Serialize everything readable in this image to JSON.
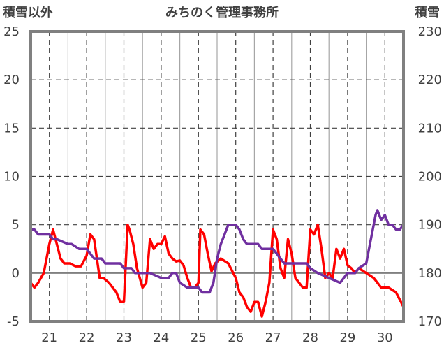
{
  "header": {
    "left_axis_label": "積雪以外",
    "right_axis_label": "積雪",
    "title": "みちのく管理事務所"
  },
  "chart_data": {
    "type": "line",
    "title": "みちのく管理事務所",
    "x_categories": [
      "21",
      "22",
      "23",
      "24",
      "25",
      "26",
      "27",
      "28",
      "29",
      "30"
    ],
    "left_axis": {
      "label": "積雪以外",
      "range": [
        -5,
        25
      ],
      "ticks": [
        "25",
        "20",
        "15",
        "10",
        "5",
        "0",
        "-5"
      ]
    },
    "right_axis": {
      "label": "積雪",
      "range": [
        170,
        230
      ],
      "ticks": [
        "230",
        "220",
        "210",
        "200",
        "190",
        "180",
        "170"
      ]
    },
    "grid": "dashed",
    "series": [
      {
        "axis": "left",
        "color": "#ff0000",
        "x": [
          20.5,
          20.6,
          20.7,
          20.85,
          21.0,
          21.1,
          21.2,
          21.3,
          21.4,
          21.55,
          21.7,
          21.85,
          22.0,
          22.1,
          22.2,
          22.35,
          22.45,
          22.6,
          22.8,
          22.9,
          23.0,
          23.05,
          23.1,
          23.15,
          23.25,
          23.35,
          23.5,
          23.6,
          23.7,
          23.8,
          23.9,
          24.0,
          24.1,
          24.2,
          24.3,
          24.4,
          24.5,
          24.6,
          24.7,
          24.8,
          24.9,
          25.0,
          25.05,
          25.15,
          25.25,
          25.35,
          25.45,
          25.6,
          25.8,
          26.0,
          26.1,
          26.2,
          26.3,
          26.4,
          26.5,
          26.6,
          26.7,
          26.8,
          26.9,
          27.0,
          27.1,
          27.2,
          27.3,
          27.4,
          27.5,
          27.6,
          27.7,
          27.8,
          27.9,
          28.0,
          28.1,
          28.2,
          28.3,
          28.4,
          28.5,
          28.6,
          28.7,
          28.8,
          28.9,
          29.0,
          29.1,
          29.2,
          29.3,
          29.5,
          29.7,
          29.9,
          30.1,
          30.3,
          30.5
        ],
        "y": [
          -1.0,
          -1.5,
          -1.0,
          0.0,
          3.0,
          4.5,
          3.0,
          1.5,
          1.0,
          1.0,
          0.7,
          0.7,
          1.8,
          4.0,
          3.5,
          -0.5,
          -0.5,
          -1.0,
          -2.0,
          -3.0,
          -3.0,
          1.0,
          5.0,
          4.5,
          3.0,
          0.5,
          -1.5,
          -1.0,
          3.5,
          2.5,
          3.0,
          3.0,
          3.8,
          2.0,
          1.5,
          1.2,
          1.3,
          0.8,
          -0.5,
          -1.5,
          -1.5,
          -1.0,
          4.5,
          4.0,
          2.0,
          0.2,
          1.0,
          1.5,
          1.0,
          -0.5,
          -2.0,
          -2.5,
          -3.5,
          -4.0,
          -3.0,
          -3.0,
          -4.5,
          -3.0,
          -1.0,
          4.5,
          3.5,
          0.5,
          -0.5,
          3.5,
          2.0,
          -0.5,
          -1.0,
          -1.5,
          -1.5,
          4.5,
          4.0,
          5.0,
          2.5,
          -0.5,
          0.0,
          -0.5,
          2.5,
          1.5,
          2.5,
          0.8,
          0.5,
          0.0,
          0.5,
          0.0,
          -0.5,
          -1.5,
          -1.5,
          -2.0,
          -3.5
        ]
      },
      {
        "axis": "right",
        "color": "#7030a0",
        "x": [
          20.5,
          20.6,
          20.7,
          20.8,
          21.0,
          21.1,
          21.2,
          21.5,
          21.6,
          21.8,
          22.0,
          22.1,
          22.2,
          22.4,
          22.5,
          22.7,
          22.9,
          23.0,
          23.2,
          23.3,
          23.7,
          24.0,
          24.2,
          24.3,
          24.4,
          24.5,
          24.7,
          25.0,
          25.1,
          25.3,
          25.4,
          25.5,
          25.6,
          25.7,
          25.8,
          25.9,
          26.0,
          26.1,
          26.2,
          26.3,
          26.5,
          26.6,
          26.7,
          26.8,
          27.0,
          27.1,
          27.3,
          27.6,
          27.9,
          28.0,
          28.2,
          28.5,
          28.8,
          29.0,
          29.1,
          29.2,
          29.3,
          29.5,
          29.6,
          29.7,
          29.75,
          29.8,
          29.85,
          29.9,
          30.0,
          30.1,
          30.2,
          30.3,
          30.4,
          30.5
        ],
        "y": [
          189,
          189,
          188,
          188,
          188,
          187,
          187,
          186,
          186,
          185,
          185,
          184,
          183,
          183,
          182,
          182,
          182,
          181,
          181,
          180,
          180,
          179,
          179,
          180,
          180,
          178,
          177,
          177,
          176,
          176,
          178,
          183,
          186,
          188,
          190,
          190,
          190,
          189,
          187,
          186,
          186,
          186,
          185,
          185,
          185,
          184,
          182,
          182,
          182,
          181,
          180,
          179,
          178,
          180,
          180,
          180,
          181,
          182,
          186,
          190,
          192,
          193,
          192,
          191,
          192,
          190,
          190,
          189,
          189,
          190
        ]
      }
    ]
  }
}
